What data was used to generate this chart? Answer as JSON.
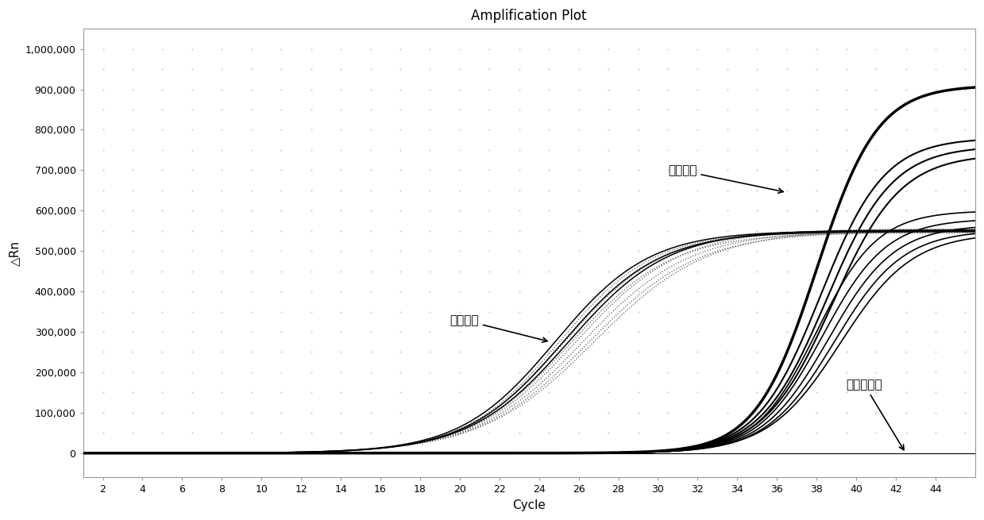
{
  "title": "Amplification Plot",
  "xlabel": "Cycle",
  "ylabel": "△Rn",
  "xlim": [
    1,
    46
  ],
  "ylim": [
    -60000,
    1050000
  ],
  "xticks": [
    2,
    4,
    6,
    8,
    10,
    12,
    14,
    16,
    18,
    20,
    22,
    24,
    26,
    28,
    30,
    32,
    34,
    36,
    38,
    40,
    42,
    44
  ],
  "yticks": [
    0,
    100000,
    200000,
    300000,
    400000,
    500000,
    600000,
    700000,
    800000,
    900000,
    1000000
  ],
  "ytick_labels": [
    "0",
    "100,000",
    "200,000",
    "300,000",
    "400,000",
    "500,000",
    "600,000",
    "700,000",
    "800,000",
    "900,000",
    "1,000,000"
  ],
  "background_color": "#ffffff",
  "annotation_neibioa": "内标通道",
  "annotation_mudi": "目的通道",
  "annotation_yinxing": "阴性质控品",
  "internal_ctrl_curves": [
    {
      "midpoint": 25.0,
      "plateau": 548000,
      "steepness": 0.42
    },
    {
      "midpoint": 25.3,
      "plateau": 552000,
      "steepness": 0.4
    },
    {
      "midpoint": 25.6,
      "plateau": 545000,
      "steepness": 0.39
    },
    {
      "midpoint": 25.9,
      "plateau": 555000,
      "steepness": 0.38
    },
    {
      "midpoint": 26.2,
      "plateau": 550000,
      "steepness": 0.37
    },
    {
      "midpoint": 26.5,
      "plateau": 548000,
      "steepness": 0.36
    },
    {
      "midpoint": 26.8,
      "plateau": 553000,
      "steepness": 0.35
    }
  ],
  "target_high_curve": {
    "midpoint": 38.0,
    "plateau": 910000,
    "steepness": 0.65
  },
  "target_mid_curves": [
    {
      "midpoint": 38.2,
      "plateau": 780000,
      "steepness": 0.62
    },
    {
      "midpoint": 38.5,
      "plateau": 760000,
      "steepness": 0.6
    },
    {
      "midpoint": 38.8,
      "plateau": 740000,
      "steepness": 0.58
    }
  ],
  "target_low_curves": [
    {
      "midpoint": 38.0,
      "plateau": 600000,
      "steepness": 0.65
    },
    {
      "midpoint": 38.3,
      "plateau": 580000,
      "steepness": 0.62
    },
    {
      "midpoint": 38.6,
      "plateau": 565000,
      "steepness": 0.6
    },
    {
      "midpoint": 38.9,
      "plateau": 552000,
      "steepness": 0.58
    },
    {
      "midpoint": 39.2,
      "plateau": 545000,
      "steepness": 0.55
    }
  ]
}
